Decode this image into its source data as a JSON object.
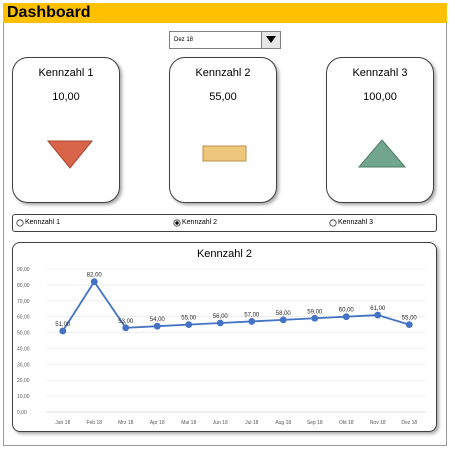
{
  "header": {
    "title": "Dashboard",
    "color": "#ffc000"
  },
  "dropdown": {
    "value": "Dez 18"
  },
  "kpis": [
    {
      "title": "Kennzahl  1",
      "value": "10,00",
      "indicator": "triangle-down-icon",
      "color": "#d8644a"
    },
    {
      "title": "Kennzahl  2",
      "value": "55,00",
      "indicator": "rectangle-icon",
      "color": "#efc77c"
    },
    {
      "title": "Kennzahl  3",
      "value": "100,00",
      "indicator": "triangle-up-icon",
      "color": "#72a58d"
    }
  ],
  "radio": {
    "options": [
      "Kennzahl 1",
      "Kennzahl 2",
      "Kennzahl 3"
    ],
    "selected": 1
  },
  "chart_data": {
    "type": "line",
    "title": "Kennzahl  2",
    "categories": [
      "Jan 18",
      "Feb 18",
      "Mrz 18",
      "Apr 18",
      "Mai 18",
      "Jun 18",
      "Jul 18",
      "Aug 18",
      "Sep 18",
      "Okt 18",
      "Nov 18",
      "Dez 18"
    ],
    "series": [
      {
        "values": [
          51,
          82,
          53,
          54,
          55,
          56,
          57,
          58,
          59,
          60,
          61,
          55
        ],
        "labels": [
          "51,00",
          "82,00",
          "53,00",
          "54,00",
          "55,00",
          "56,00",
          "57,00",
          "58,00",
          "59,00",
          "60,00",
          "61,00",
          "55,00"
        ],
        "color": "#4472c4"
      }
    ],
    "ylim": [
      0,
      90
    ],
    "yticks": [
      "0,00",
      "10,00",
      "20,00",
      "30,00",
      "40,00",
      "50,00",
      "60,00",
      "70,00",
      "80,00",
      "90,00"
    ],
    "grid": true,
    "legend": "none"
  }
}
